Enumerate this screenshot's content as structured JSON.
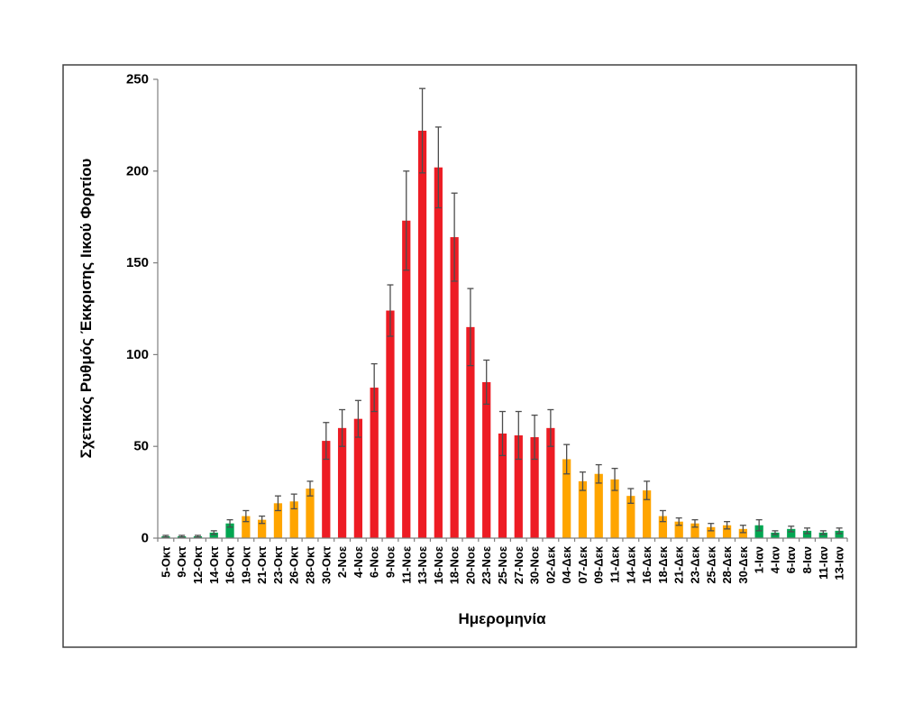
{
  "chart_data": {
    "type": "bar",
    "title": "",
    "xlabel": "Ημερομηνία",
    "ylabel": "Σχετικός Ρυθμός Έκκρισης Ιικού Φορτίου",
    "ylim": [
      0,
      250
    ],
    "yticks": [
      0,
      50,
      100,
      150,
      200,
      250
    ],
    "grid": false,
    "legend": "none",
    "error_bars": true,
    "palette": {
      "green": "#00A651",
      "orange": "#FFA500",
      "red": "#ED1C24"
    },
    "categories": [
      "5-Οκτ",
      "9-Οκτ",
      "12-Οκτ",
      "14-Οκτ",
      "16-Οκτ",
      "19-Οκτ",
      "21-Οκτ",
      "23-Οκτ",
      "26-Οκτ",
      "28-Οκτ",
      "30-Οκτ",
      "2-Νοε",
      "4-Νοε",
      "6-Νοε",
      "9-Νοε",
      "11-Νοε",
      "13-Νοε",
      "16-Νοε",
      "18-Νοε",
      "20-Νοε",
      "23-Νοε",
      "25-Νοε",
      "27-Νοε",
      "30-Νοε",
      "02-Δεκ",
      "04-Δεκ",
      "07-Δεκ",
      "09-Δεκ",
      "11-Δεκ",
      "14-Δεκ",
      "16-Δεκ",
      "18-Δεκ",
      "21-Δεκ",
      "23-Δεκ",
      "25-Δεκ",
      "28-Δεκ",
      "30-Δεκ",
      "1-Ιαν",
      "4-Ιαν",
      "6-Ιαν",
      "8-Ιαν",
      "11-Ιαν",
      "13-Ιαν"
    ],
    "values": [
      1,
      1,
      1,
      3,
      8,
      12,
      10,
      19,
      20,
      27,
      53,
      60,
      65,
      82,
      124,
      173,
      222,
      202,
      164,
      115,
      85,
      57,
      56,
      55,
      60,
      43,
      31,
      35,
      32,
      23,
      26,
      12,
      9,
      8,
      6,
      7,
      5,
      7,
      3,
      5,
      4,
      3,
      4
    ],
    "errors": [
      0.5,
      0.5,
      0.5,
      1,
      2,
      3,
      2,
      4,
      4,
      4,
      10,
      10,
      10,
      13,
      14,
      27,
      23,
      22,
      24,
      21,
      12,
      12,
      13,
      12,
      10,
      8,
      5,
      5,
      6,
      4,
      5,
      3,
      2,
      2,
      2,
      2,
      2,
      3,
      1,
      1.5,
      1.5,
      1,
      1.5
    ],
    "bar_colors": [
      "green",
      "green",
      "green",
      "green",
      "green",
      "orange",
      "orange",
      "orange",
      "orange",
      "orange",
      "red",
      "red",
      "red",
      "red",
      "red",
      "red",
      "red",
      "red",
      "red",
      "red",
      "red",
      "red",
      "red",
      "red",
      "red",
      "orange",
      "orange",
      "orange",
      "orange",
      "orange",
      "orange",
      "orange",
      "orange",
      "orange",
      "orange",
      "orange",
      "orange",
      "green",
      "green",
      "green",
      "green",
      "green",
      "green"
    ]
  }
}
